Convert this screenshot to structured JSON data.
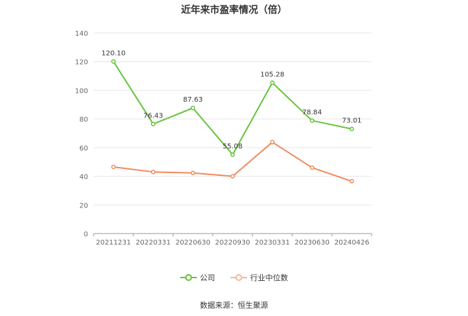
{
  "chart_data": {
    "type": "line",
    "title": "近年来市盈率情况（倍）",
    "categories": [
      "20211231",
      "20220331",
      "20220630",
      "20220930",
      "20230331",
      "20230630",
      "20240426"
    ],
    "series": [
      {
        "name": "公司",
        "color": "#66c23a",
        "values": [
          120.1,
          76.43,
          87.63,
          55.08,
          105.28,
          78.84,
          73.01
        ],
        "data_labels": [
          "120.10",
          "76.43",
          "87.63",
          "55.08",
          "105.28",
          "78.84",
          "73.01"
        ]
      },
      {
        "name": "行业中位数",
        "color": "#f08a5d",
        "values": [
          46.5,
          43.0,
          42.3,
          40.0,
          63.8,
          46.0,
          36.5
        ]
      }
    ],
    "ylim": [
      0,
      140
    ],
    "yticks": [
      "0",
      "20",
      "40",
      "60",
      "80",
      "100",
      "120",
      "140"
    ],
    "grid": true,
    "legend_position": "bottom"
  },
  "source_note": "数据来源：恒生聚源"
}
